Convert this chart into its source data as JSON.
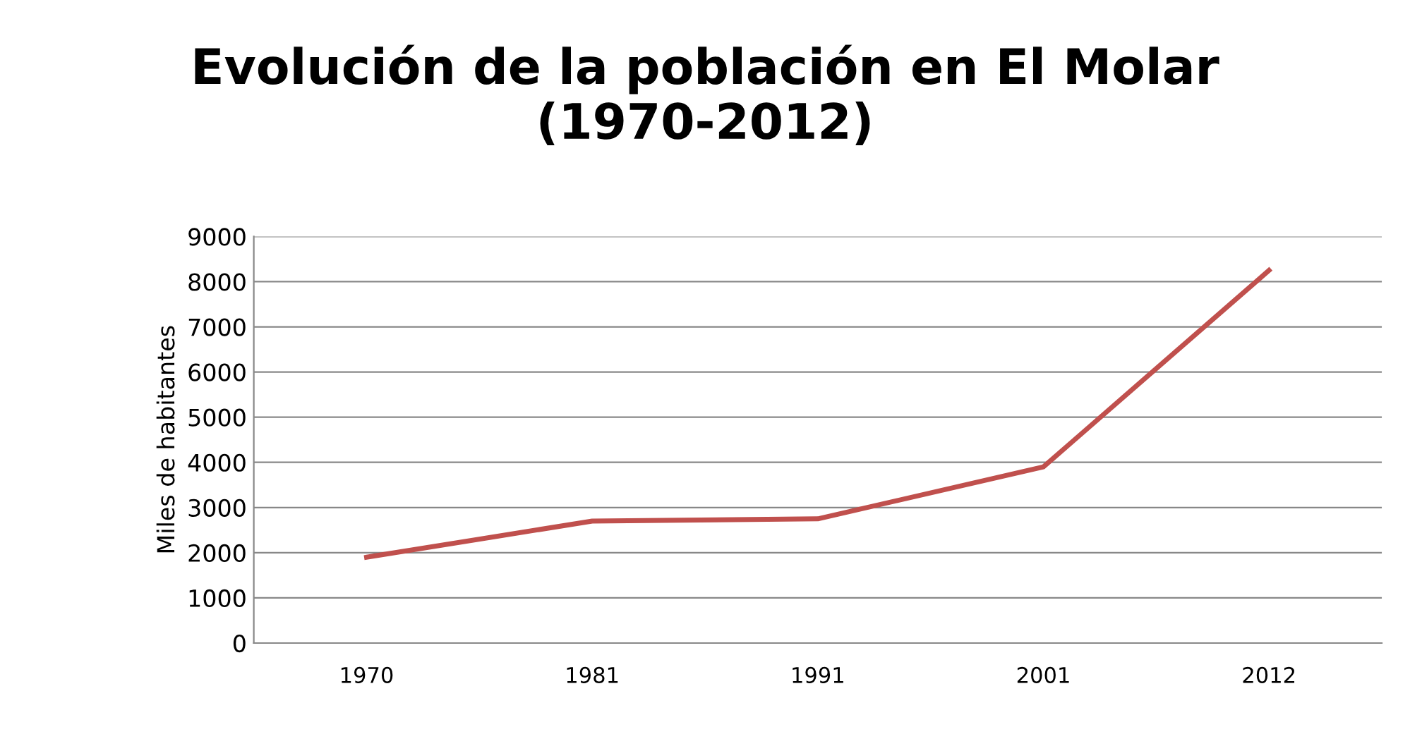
{
  "chart_data": {
    "type": "line",
    "title": "Evolución de la población en El Molar\n(1970-2012)",
    "ylabel": "Miles de habitantes",
    "categories": [
      "1970",
      "1981",
      "1991",
      "2001",
      "2012"
    ],
    "series": [
      {
        "color": "#c0504d",
        "values": [
          1900,
          2700,
          2750,
          3900,
          8250
        ]
      }
    ],
    "ylim": [
      0,
      9000
    ],
    "yticks": [
      0,
      1000,
      2000,
      3000,
      4000,
      5000,
      6000,
      7000,
      8000,
      9000
    ],
    "grid": "y",
    "marker": "none",
    "line_style": "solid"
  }
}
